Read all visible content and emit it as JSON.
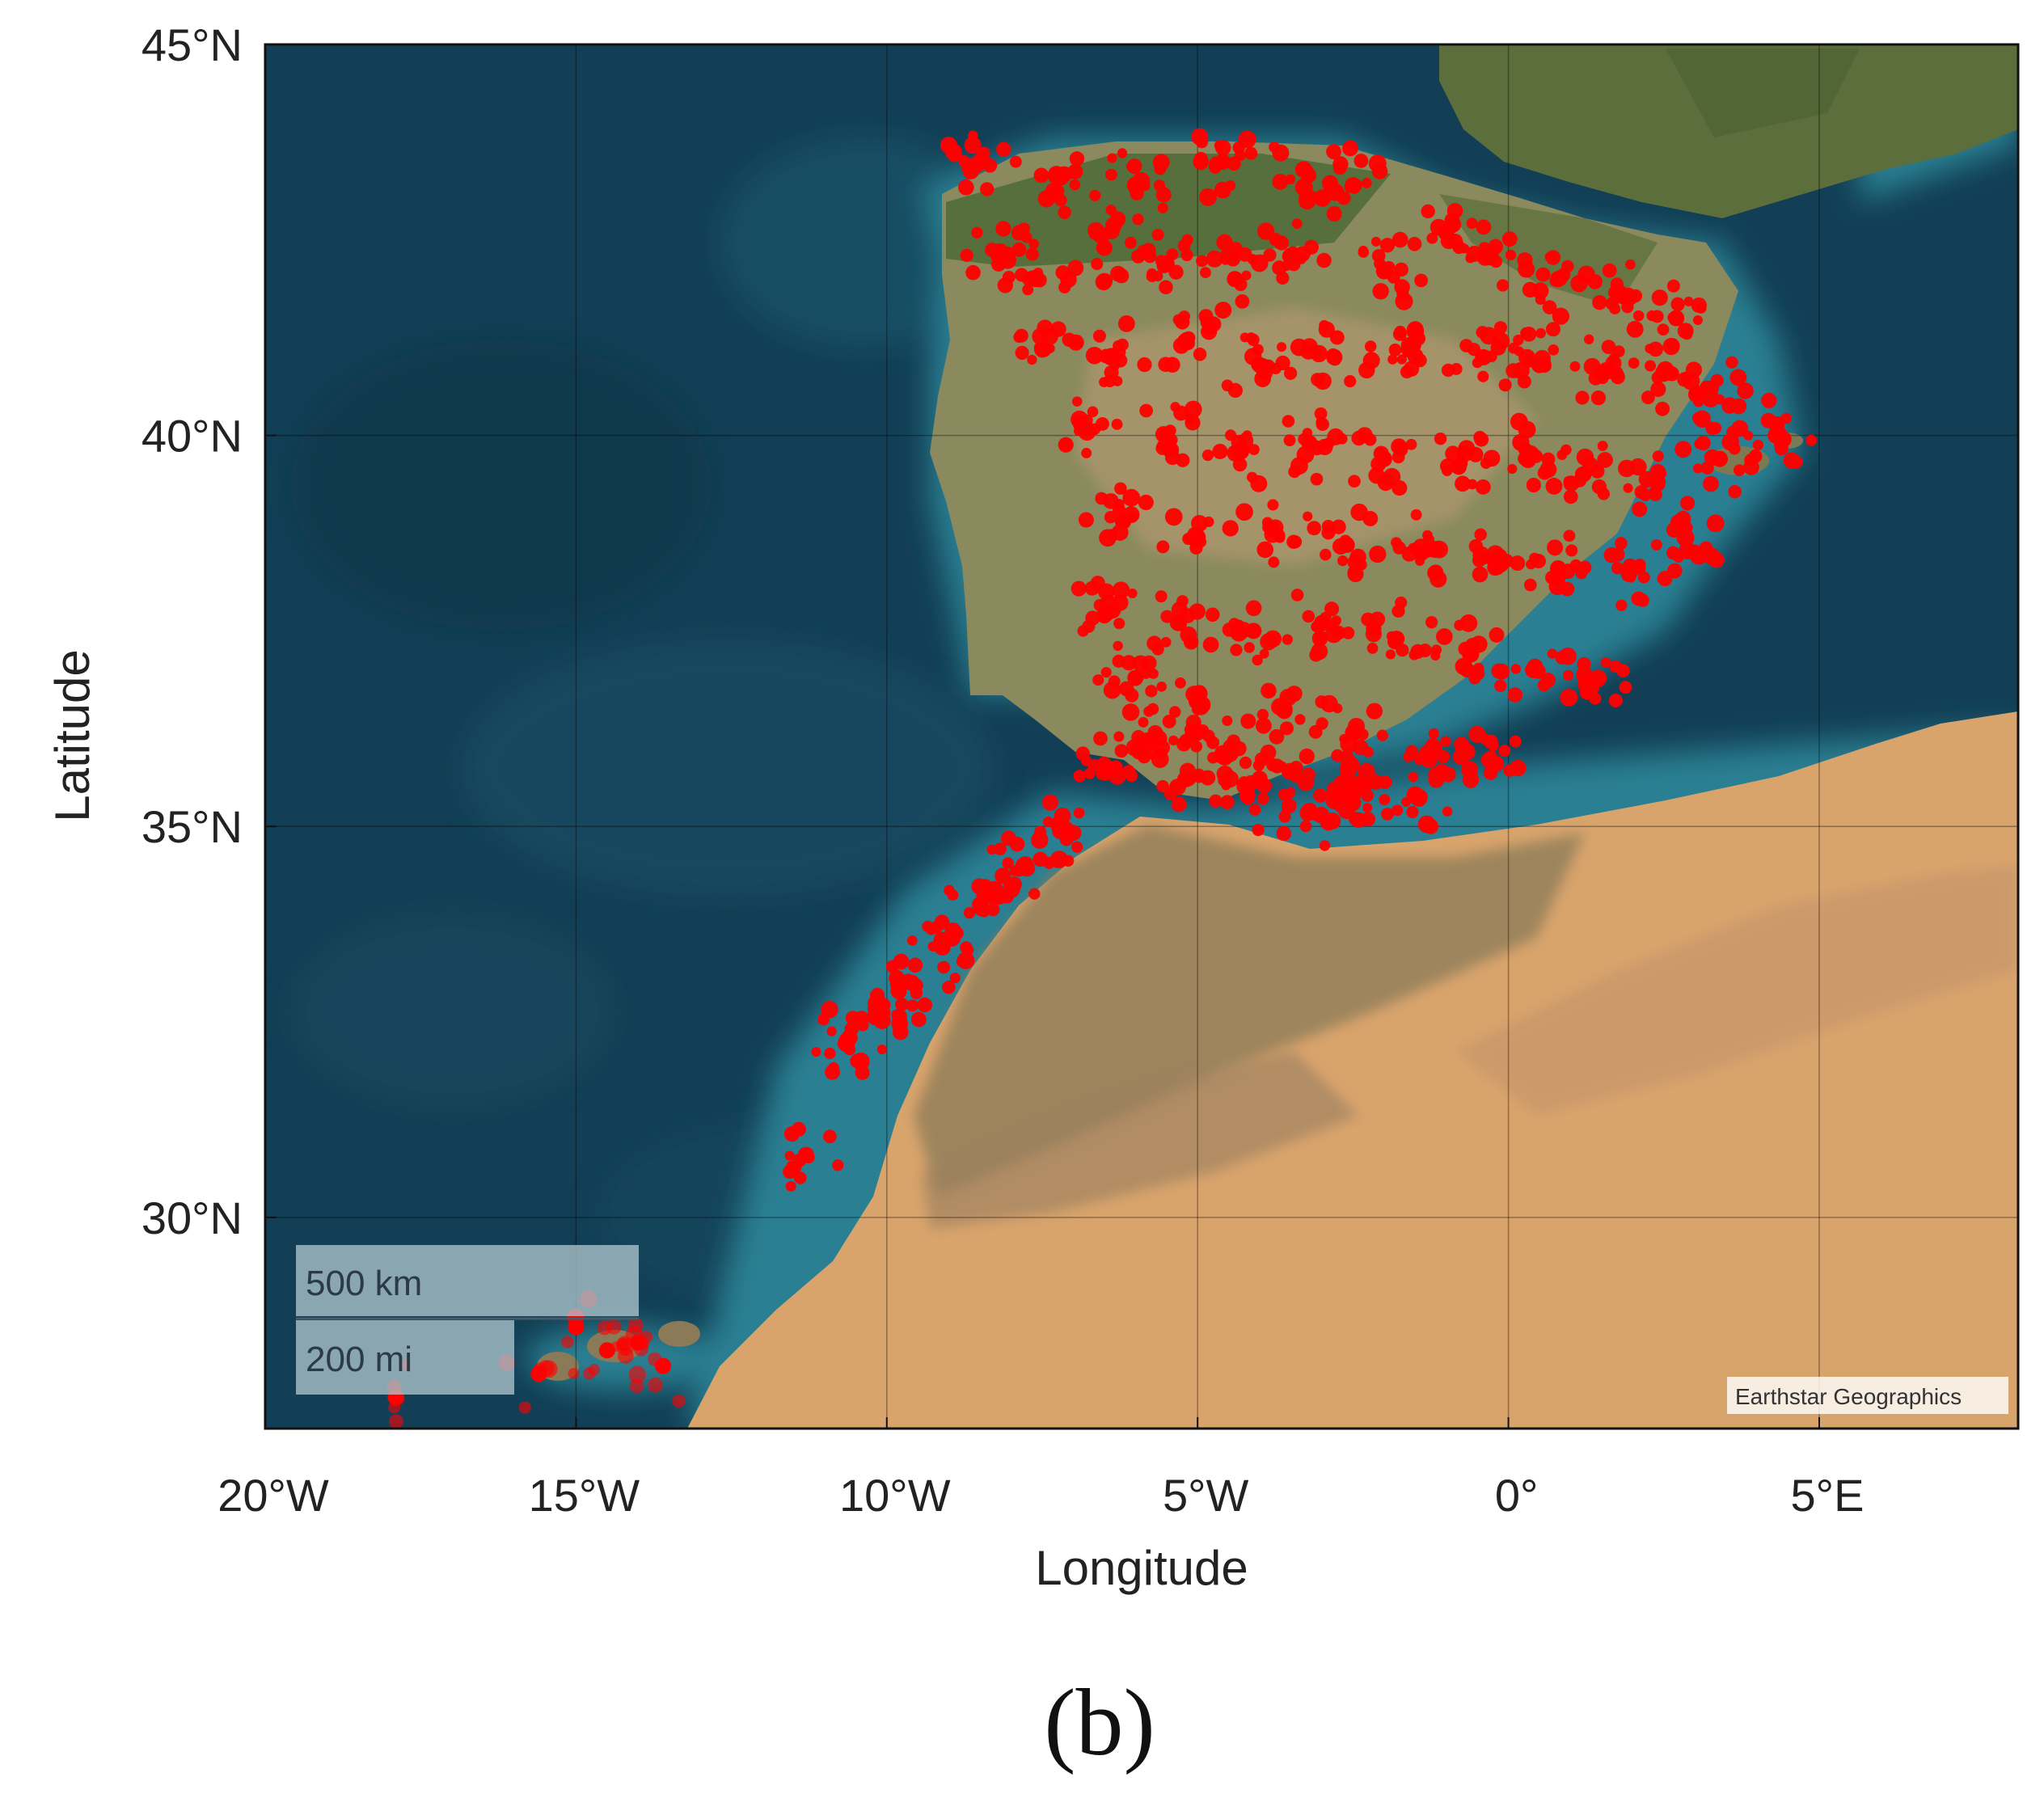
{
  "panel_label": "(b)",
  "attribution": "Earthstar Geographics",
  "scale_bar": {
    "km_label": "500 km",
    "mi_label": "200 mi"
  },
  "colors": {
    "ocean_deep": "#123f55",
    "ocean_shelf": "#1f6f86",
    "land_green": "#5b6e3c",
    "land_desert": "#d9a46c",
    "points": "#ff0000"
  },
  "chart_data": {
    "type": "scatter",
    "title": "",
    "xlabel": "Longitude",
    "ylabel": "Latitude",
    "xlim": [
      -20,
      8.2
    ],
    "ylim": [
      27.3,
      45
    ],
    "x_ticks": [
      -20,
      -15,
      -10,
      -5,
      0,
      5
    ],
    "x_tick_labels": [
      "20°W",
      "15°W",
      "10°W",
      "5°W",
      "0°",
      "5°E"
    ],
    "y_ticks": [
      30,
      35,
      40,
      45
    ],
    "y_tick_labels": [
      "30°N",
      "35°N",
      "40°N",
      "45°N"
    ],
    "grid": true,
    "basemap": "satellite imagery",
    "series": [
      {
        "color": "#ff0000",
        "x": [
          -8.5,
          -7.2,
          -6.0,
          -4.6,
          -3.3,
          -2.5,
          -1.0,
          -8.2,
          -7.6,
          -6.5,
          -5.5,
          -4.4,
          -3.5,
          -2.0,
          -0.3,
          0.8,
          1.8,
          2.7,
          -7.5,
          -6.4,
          -5.2,
          -4.0,
          -2.8,
          -1.6,
          -0.4,
          0.5,
          1.5,
          2.5,
          3.2,
          -6.8,
          -5.5,
          -4.3,
          -3.2,
          -2.0,
          -0.8,
          0.3,
          1.2,
          2.4,
          3.4,
          4.3,
          -6.2,
          -5.0,
          -3.8,
          -2.6,
          -1.4,
          -0.2,
          0.8,
          2.0,
          3.0,
          -6.5,
          -5.3,
          -4.1,
          -3.0,
          -1.8,
          -0.6,
          0.4,
          1.3,
          -6.0,
          -5.0,
          -3.6,
          -2.5,
          -1.2,
          -0.2,
          -5.8,
          -4.6,
          -3.5,
          -2.4,
          -1.5,
          -5.2,
          -4.2,
          -3.2,
          -2.5,
          -6.5,
          -7.2,
          -7.8,
          -8.5,
          -9.1,
          -9.6,
          -10.1,
          -10.6,
          -11.3,
          -15.0,
          -14.5,
          -14.0,
          -13.6,
          -15.6,
          -17.9
        ],
        "y": [
          43.5,
          43.3,
          43.2,
          43.5,
          43.4,
          43.2,
          42.6,
          42.3,
          42.0,
          42.4,
          42.2,
          42.0,
          42.3,
          42.1,
          42.3,
          42.0,
          41.8,
          41.5,
          41.1,
          41.0,
          41.2,
          40.9,
          41.0,
          41.1,
          41.0,
          40.9,
          40.8,
          40.8,
          40.6,
          40.1,
          40.0,
          39.8,
          39.9,
          39.7,
          39.6,
          39.7,
          39.5,
          39.4,
          39.7,
          40.0,
          38.9,
          38.7,
          38.8,
          38.6,
          38.5,
          38.4,
          38.3,
          38.3,
          38.5,
          37.7,
          37.6,
          37.5,
          37.6,
          37.4,
          37.2,
          37.0,
          36.8,
          36.9,
          36.6,
          36.5,
          36.2,
          36.0,
          35.8,
          36.1,
          35.9,
          35.7,
          35.5,
          35.4,
          35.6,
          35.4,
          35.2,
          35.3,
          35.7,
          35.0,
          34.5,
          34.0,
          33.5,
          33.0,
          32.6,
          32.3,
          30.8,
          28.6,
          28.3,
          28.4,
          28.1,
          28.0,
          27.7
        ]
      }
    ]
  }
}
